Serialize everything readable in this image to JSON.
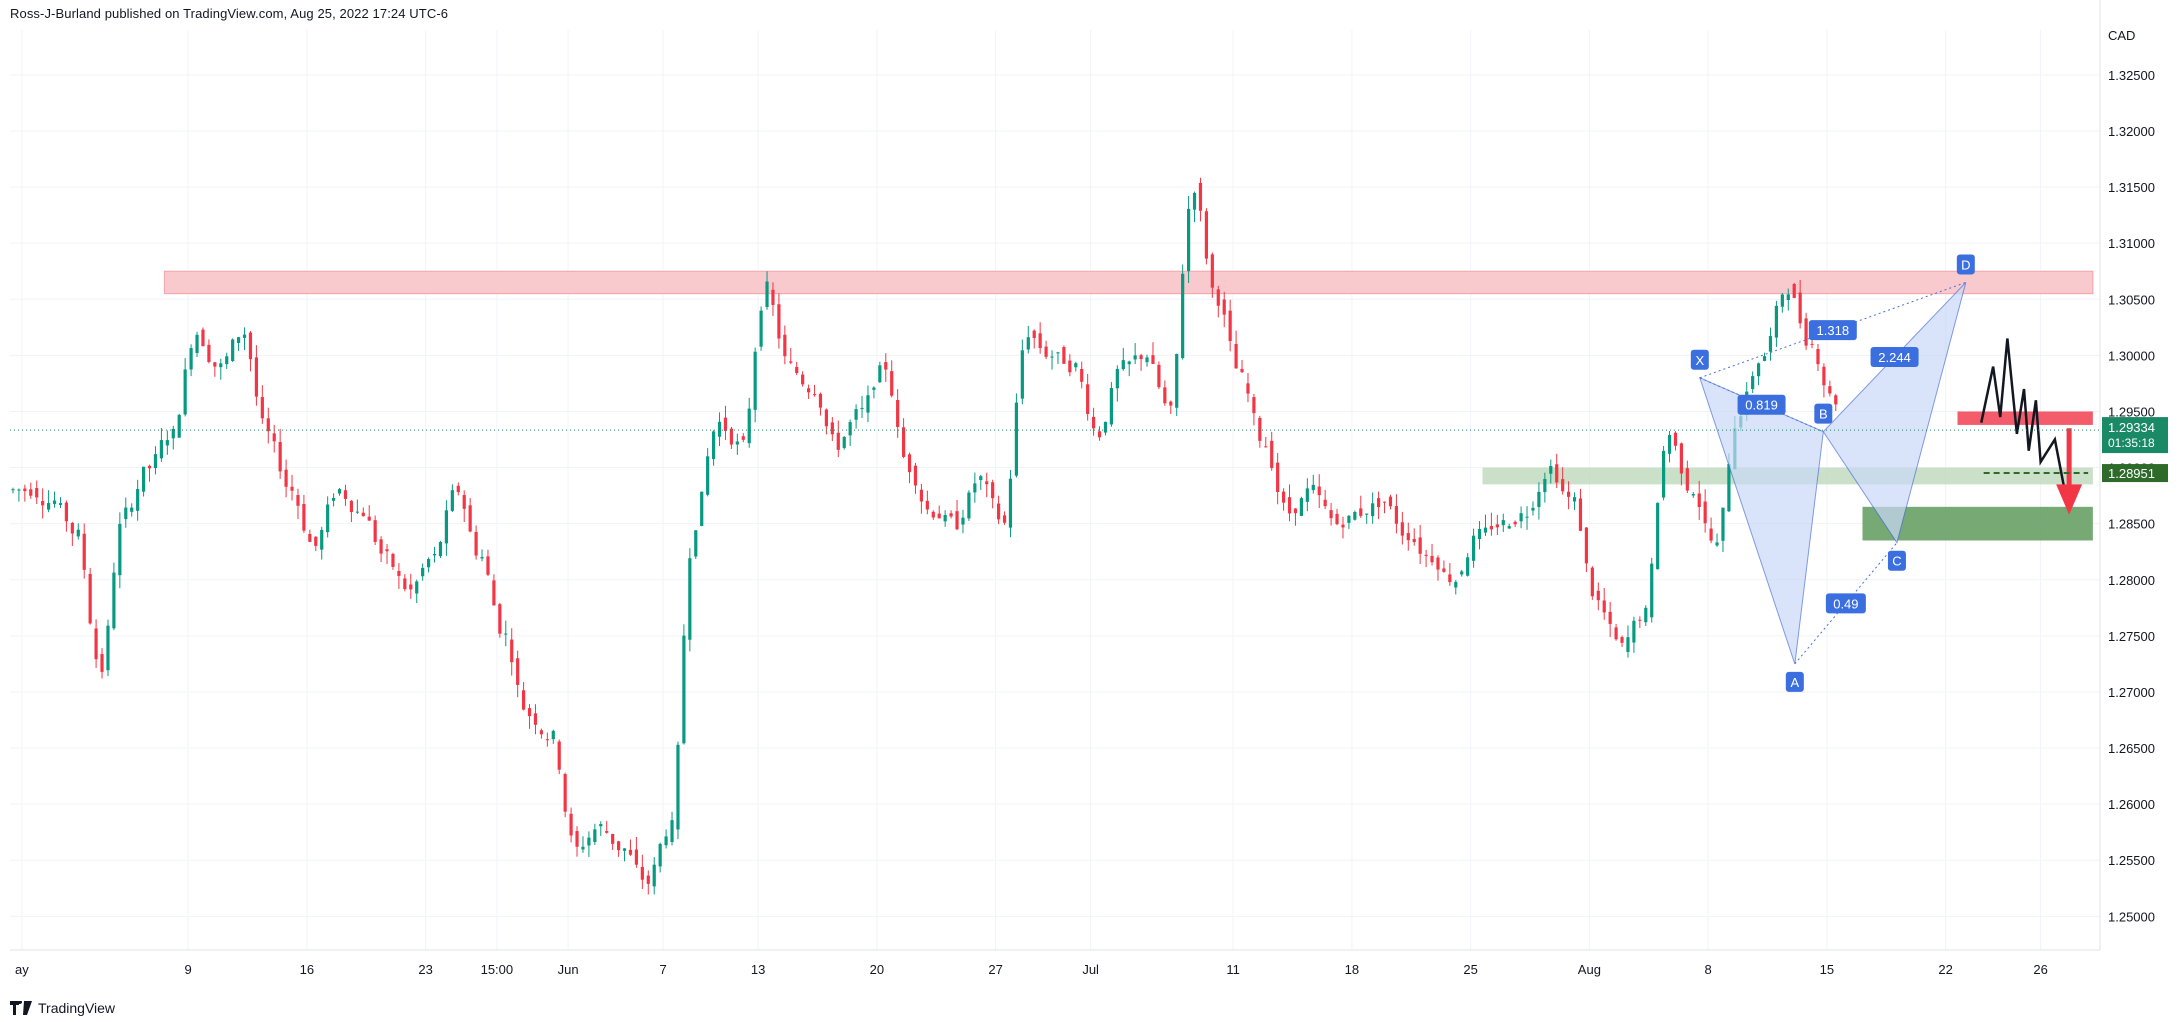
{
  "header": {
    "publisher": "Ross-J-Burland published on TradingView.com, Aug 25, 2022 17:24 UTC-6"
  },
  "footer": {
    "brand": "TradingView",
    "logo_icon": "tradingview-logo-icon"
  },
  "colors": {
    "up": "#089981",
    "down": "#f23645",
    "grid": "#f0f3fa",
    "resistance_zone": "#f8c9cd",
    "support_zone": "#b9d5b7",
    "target_zone": "#5e9a5c",
    "pattern_fill": "#c9d8f7",
    "pattern_line": "#4a6fd8",
    "label_bg": "#3b6fe0",
    "projection": "#131722",
    "arrow": "#f23645",
    "last_price_bg": "#1a8a66",
    "target_price_bg": "#2e6b2a"
  },
  "chart_data": {
    "type": "candlestick",
    "title": "",
    "currency_label": "CAD",
    "y_ticks": [
      "1.32500",
      "1.32000",
      "1.31500",
      "1.31000",
      "1.30500",
      "1.30000",
      "1.29500",
      "1.29000",
      "1.28500",
      "1.28000",
      "1.27500",
      "1.27000",
      "1.26500",
      "1.26000",
      "1.25500",
      "1.25000"
    ],
    "ylim": [
      1.247,
      1.329
    ],
    "x_ticks": [
      {
        "label": "ay",
        "bar": 0
      },
      {
        "label": "9",
        "bar": 7
      },
      {
        "label": "16",
        "bar": 12
      },
      {
        "label": "23",
        "bar": 17
      },
      {
        "label": "15:00",
        "bar": 20
      },
      {
        "label": "Jun",
        "bar": 23
      },
      {
        "label": "7",
        "bar": 27
      },
      {
        "label": "13",
        "bar": 31
      },
      {
        "label": "20",
        "bar": 36
      },
      {
        "label": "27",
        "bar": 41
      },
      {
        "label": "Jul",
        "bar": 45
      },
      {
        "label": "11",
        "bar": 51
      },
      {
        "label": "18",
        "bar": 56
      },
      {
        "label": "25",
        "bar": 61
      },
      {
        "label": "Aug",
        "bar": 66
      },
      {
        "label": "8",
        "bar": 71
      },
      {
        "label": "15",
        "bar": 76
      },
      {
        "label": "22",
        "bar": 81
      },
      {
        "label": "26",
        "bar": 85
      }
    ],
    "daily_closes": [
      1.288,
      1.287,
      1.284,
      1.272,
      1.286,
      1.29,
      1.293,
      1.302,
      1.299,
      1.302,
      1.293,
      1.288,
      1.283,
      1.288,
      1.286,
      1.282,
      1.279,
      1.282,
      1.288,
      1.282,
      1.275,
      1.268,
      1.266,
      1.256,
      1.258,
      1.256,
      1.253,
      1.258,
      1.285,
      1.294,
      1.292,
      1.306,
      1.299,
      1.297,
      1.292,
      1.295,
      1.299,
      1.29,
      1.286,
      1.285,
      1.289,
      1.285,
      1.302,
      1.3,
      1.299,
      1.293,
      1.299,
      1.3,
      1.295,
      1.315,
      1.305,
      1.298,
      1.292,
      1.286,
      1.288,
      1.285,
      1.286,
      1.287,
      1.284,
      1.282,
      1.28,
      1.284,
      1.285,
      1.286,
      1.29,
      1.287,
      1.278,
      1.274,
      1.277,
      1.293,
      1.288,
      1.283,
      1.295,
      1.3,
      1.306,
      1.301,
      1.296
    ],
    "last_price": "1.29334",
    "countdown": "01:35:18",
    "target_price": "1.28951",
    "resistance_zone": [
      1.3055,
      1.3075
    ],
    "support_zone": [
      1.2885,
      1.29
    ],
    "target_zone": [
      1.2835,
      1.2865
    ],
    "harmonic_pattern": {
      "points": [
        {
          "label": "X",
          "price": 1.298
        },
        {
          "label": "A",
          "price": 1.2725
        },
        {
          "label": "B",
          "price": 1.2932
        },
        {
          "label": "C",
          "price": 1.2833
        },
        {
          "label": "D",
          "price": 1.3065
        }
      ],
      "ratios": [
        "0.819",
        "1.318",
        "0.49",
        "2.244"
      ]
    }
  }
}
